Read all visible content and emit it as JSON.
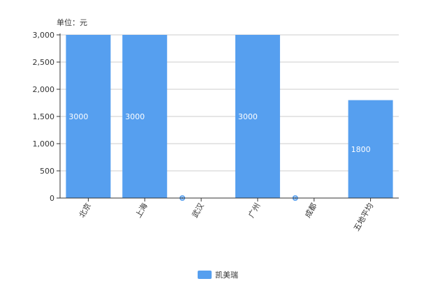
{
  "chart_data": {
    "type": "bar",
    "unit_label": "单位：元",
    "categories": [
      "北京",
      "上海",
      "武汉",
      "广州",
      "成都",
      "五地平均"
    ],
    "series": [
      {
        "name": "凯美瑞",
        "values": [
          3000,
          3000,
          0,
          3000,
          0,
          1800
        ],
        "color": "#569fef"
      }
    ],
    "yticks": [
      "0",
      "500",
      "1,000",
      "1,500",
      "2,000",
      "2,500",
      "3,000"
    ],
    "ylim": [
      0,
      3000
    ],
    "grid": true,
    "legend_position": "bottom-center",
    "colors": {
      "gridline": "#cccccc",
      "axis": "#333333"
    }
  }
}
